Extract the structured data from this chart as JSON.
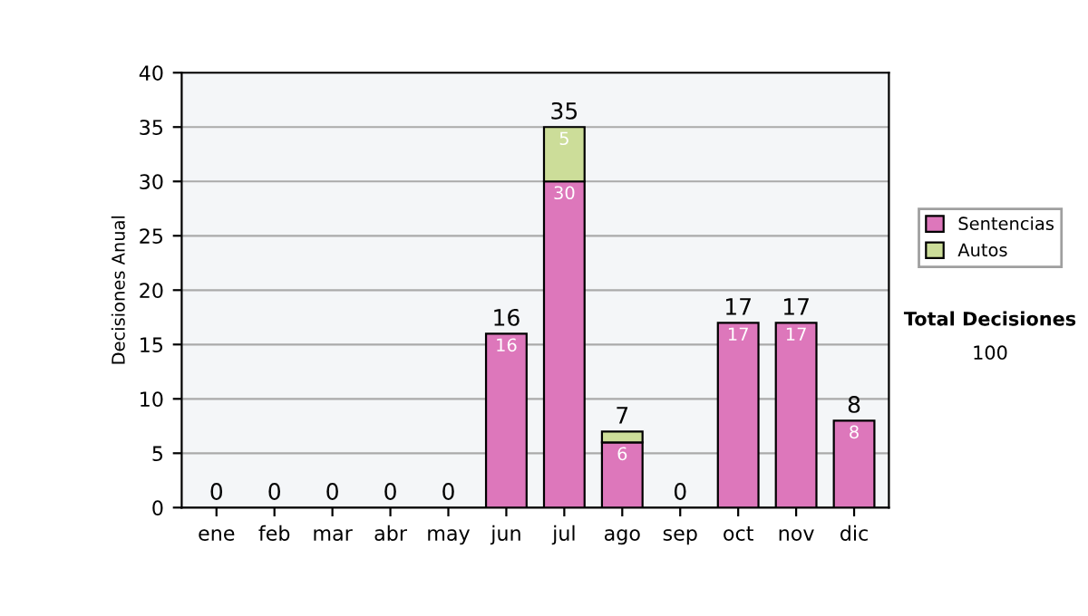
{
  "chart_data": {
    "type": "bar",
    "stacked": true,
    "ylabel": "Decisiones Anual",
    "categories": [
      "ene",
      "feb",
      "mar",
      "abr",
      "may",
      "jun",
      "jul",
      "ago",
      "sep",
      "oct",
      "nov",
      "dic"
    ],
    "series": [
      {
        "name": "Sentencias",
        "color": "#dd77bb",
        "values": [
          0,
          0,
          0,
          0,
          0,
          16,
          30,
          6,
          0,
          17,
          17,
          8
        ],
        "value_labels": [
          null,
          null,
          null,
          null,
          null,
          "16",
          "30",
          "6",
          null,
          "17",
          "17",
          "8"
        ]
      },
      {
        "name": "Autos",
        "color": "#ccdd99",
        "values": [
          0,
          0,
          0,
          0,
          0,
          0,
          5,
          1,
          0,
          0,
          0,
          0
        ],
        "value_labels": [
          null,
          null,
          null,
          null,
          null,
          null,
          "5",
          null,
          null,
          null,
          null,
          null
        ]
      }
    ],
    "totals": [
      "0",
      "0",
      "0",
      "0",
      "0",
      "16",
      "35",
      "7",
      "0",
      "17",
      "17",
      "8"
    ],
    "ylim": [
      0,
      40
    ],
    "yticks": [
      0,
      5,
      10,
      15,
      20,
      25,
      30,
      35,
      40
    ],
    "grid": "y",
    "legend": "right",
    "annotations": [
      "Total Decisiones",
      "100"
    ]
  }
}
